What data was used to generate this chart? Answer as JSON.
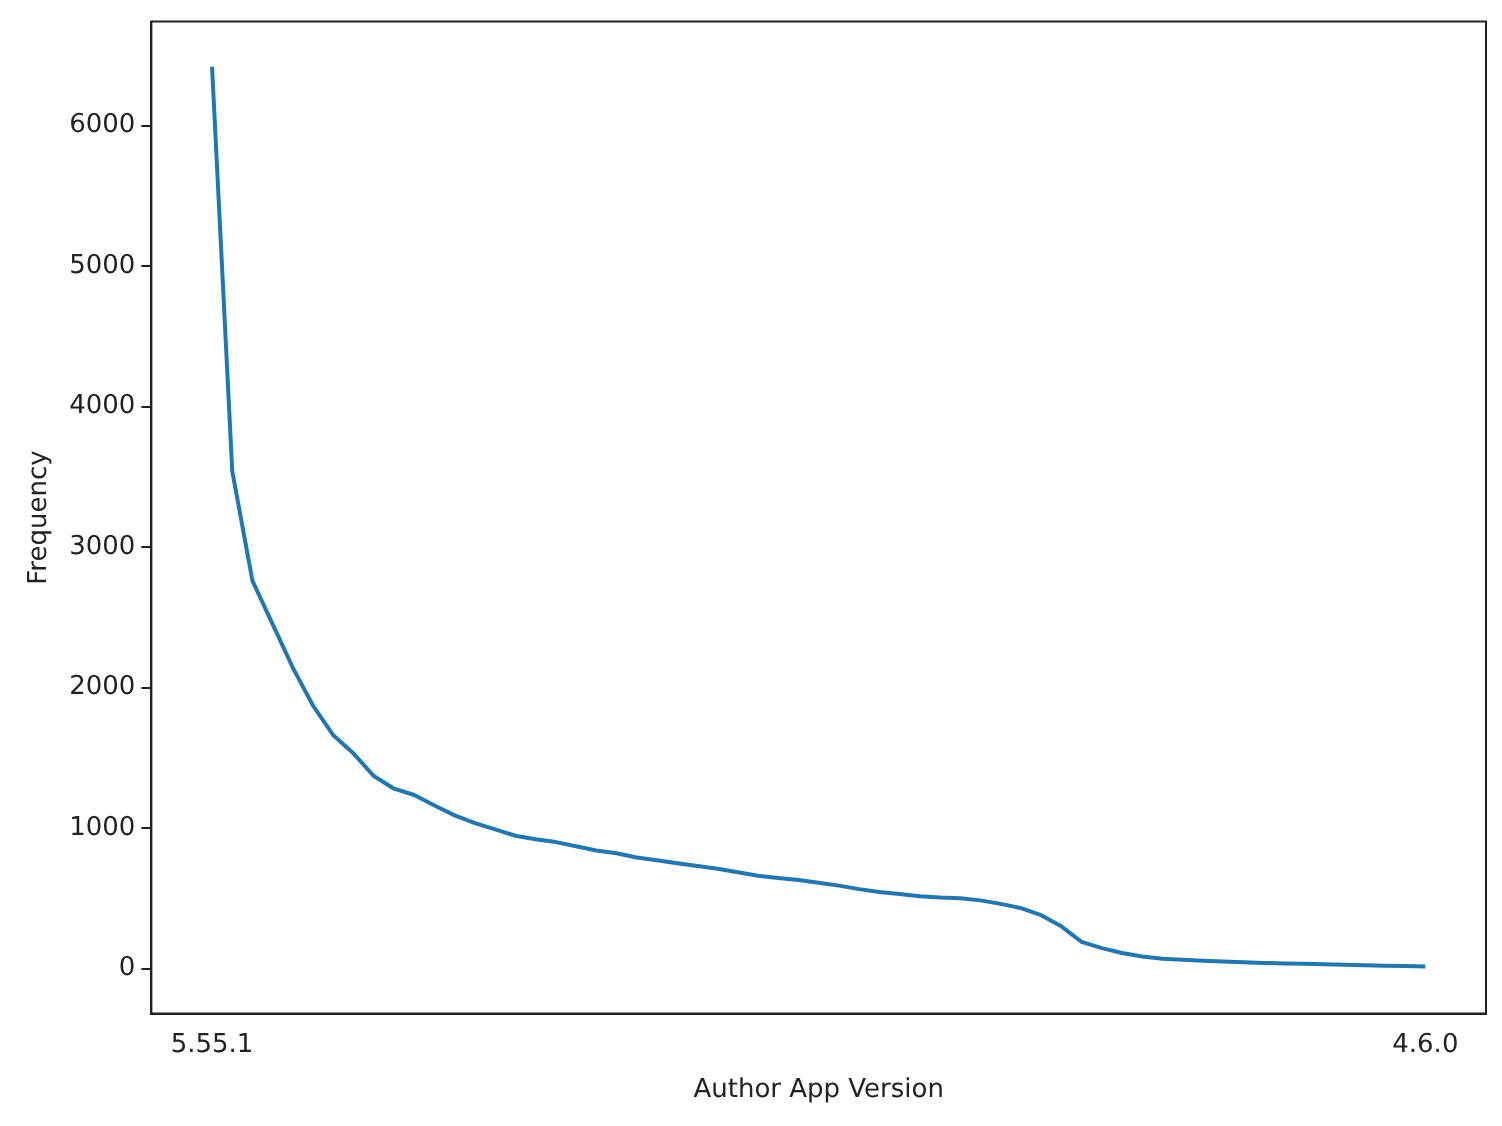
{
  "chart_data": {
    "type": "line",
    "xlabel": "Author App Version",
    "ylabel": "Frequency",
    "categories": [
      "5.55.1",
      null,
      null,
      null,
      null,
      null,
      null,
      null,
      null,
      null,
      null,
      null,
      null,
      null,
      null,
      null,
      null,
      null,
      null,
      null,
      null,
      null,
      null,
      null,
      null,
      null,
      null,
      null,
      null,
      null,
      null,
      null,
      null,
      null,
      null,
      null,
      null,
      null,
      null,
      null,
      null,
      null,
      null,
      null,
      null,
      null,
      null,
      null,
      null,
      null,
      null,
      null,
      null,
      null,
      null,
      null,
      null,
      null,
      null,
      null,
      "4.6.0"
    ],
    "series": [
      {
        "color": "#1f77b4",
        "values": [
          6420,
          3540,
          2760,
          2450,
          2140,
          1870,
          1660,
          1530,
          1370,
          1280,
          1235,
          1160,
          1090,
          1035,
          990,
          945,
          920,
          900,
          870,
          840,
          820,
          790,
          770,
          750,
          730,
          710,
          685,
          660,
          645,
          630,
          610,
          590,
          565,
          545,
          530,
          515,
          505,
          500,
          485,
          460,
          430,
          380,
          300,
          190,
          145,
          110,
          85,
          70,
          62,
          55,
          50,
          45,
          40,
          36,
          33,
          30,
          27,
          24,
          20,
          17,
          15
        ]
      }
    ],
    "ylim": [
      -321,
      6741
    ],
    "yticks": [
      0,
      1000,
      2000,
      3000,
      4000,
      5000,
      6000
    ],
    "grid": false,
    "legend": false
  }
}
